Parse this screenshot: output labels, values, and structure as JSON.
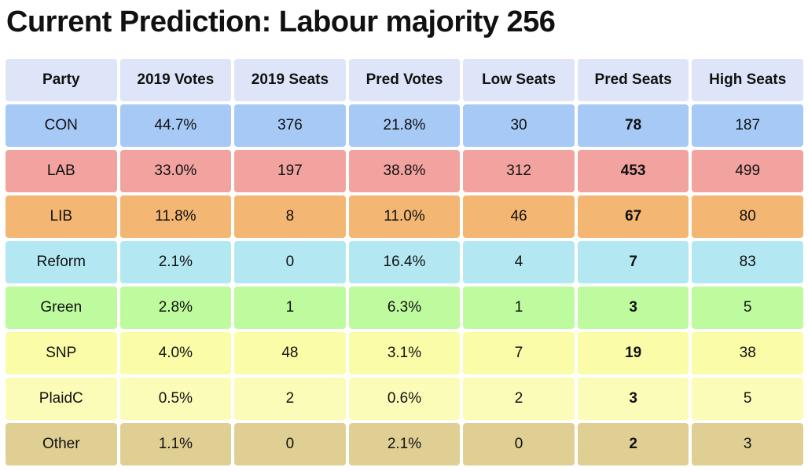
{
  "title": "Current Prediction: Labour majority 256",
  "columns": [
    "Party",
    "2019 Votes",
    "2019 Seats",
    "Pred Votes",
    "Low Seats",
    "Pred Seats",
    "High Seats"
  ],
  "header_color": "#dfe5f8",
  "rows": [
    {
      "party": "CON",
      "votes_2019": "44.7%",
      "seats_2019": "376",
      "pred_votes": "21.8%",
      "low_seats": "30",
      "pred_seats": "78",
      "high_seats": "187",
      "color": "#a6c9f5"
    },
    {
      "party": "LAB",
      "votes_2019": "33.0%",
      "seats_2019": "197",
      "pred_votes": "38.8%",
      "low_seats": "312",
      "pred_seats": "453",
      "high_seats": "499",
      "color": "#f2a3a0"
    },
    {
      "party": "LIB",
      "votes_2019": "11.8%",
      "seats_2019": "8",
      "pred_votes": "11.0%",
      "low_seats": "46",
      "pred_seats": "67",
      "high_seats": "80",
      "color": "#f3b673"
    },
    {
      "party": "Reform",
      "votes_2019": "2.1%",
      "seats_2019": "0",
      "pred_votes": "16.4%",
      "low_seats": "4",
      "pred_seats": "7",
      "high_seats": "83",
      "color": "#b3e8f3"
    },
    {
      "party": "Green",
      "votes_2019": "2.8%",
      "seats_2019": "1",
      "pred_votes": "6.3%",
      "low_seats": "1",
      "pred_seats": "3",
      "high_seats": "5",
      "color": "#befb9e"
    },
    {
      "party": "SNP",
      "votes_2019": "4.0%",
      "seats_2019": "48",
      "pred_votes": "3.1%",
      "low_seats": "7",
      "pred_seats": "19",
      "high_seats": "38",
      "color": "#fafca8"
    },
    {
      "party": "PlaidC",
      "votes_2019": "0.5%",
      "seats_2019": "2",
      "pred_votes": "0.6%",
      "low_seats": "2",
      "pred_seats": "3",
      "high_seats": "5",
      "color": "#fafcb8"
    },
    {
      "party": "Other",
      "votes_2019": "1.1%",
      "seats_2019": "0",
      "pred_votes": "2.1%",
      "low_seats": "0",
      "pred_seats": "2",
      "high_seats": "3",
      "color": "#e0cf93"
    }
  ]
}
